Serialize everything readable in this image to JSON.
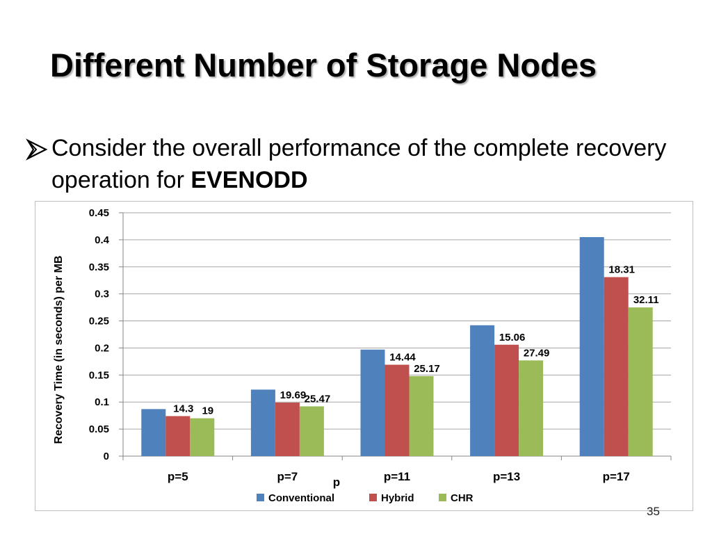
{
  "slide": {
    "title": "Different Number of Storage Nodes",
    "bullet_text": "Consider the overall performance of the complete recovery operation for",
    "bullet_bold": "EVENODD",
    "bullet_icon": "arrow-bullet-icon",
    "page_number": "35"
  },
  "chart_data": {
    "type": "bar",
    "title": "",
    "xlabel": "p",
    "ylabel": "Recovery  Time (in seconds) per MB",
    "categories": [
      "p=5",
      "p=7",
      "p=11",
      "p=13",
      "p=17"
    ],
    "ylim": [
      0,
      0.45
    ],
    "yticks": [
      "0",
      "0.05",
      "0.1",
      "0.15",
      "0.2",
      "0.25",
      "0.3",
      "0.35",
      "0.4",
      "0.45"
    ],
    "grid": true,
    "legend": "bottom",
    "series": [
      {
        "name": "Conventional",
        "color": "#4f81bd",
        "values": [
          0.087,
          0.123,
          0.197,
          0.242,
          0.405
        ],
        "labels": [
          "",
          "",
          "",
          "",
          ""
        ]
      },
      {
        "name": "Hybrid",
        "color": "#c0504d",
        "values": [
          0.074,
          0.099,
          0.169,
          0.206,
          0.331
        ],
        "labels": [
          "14.3",
          "19.69",
          "14.44",
          "15.06",
          "18.31"
        ]
      },
      {
        "name": "CHR",
        "color": "#9bbb59",
        "values": [
          0.07,
          0.092,
          0.148,
          0.177,
          0.275
        ],
        "labels": [
          "19",
          "25.47",
          "25.17",
          "27.49",
          "32.11"
        ]
      }
    ]
  }
}
